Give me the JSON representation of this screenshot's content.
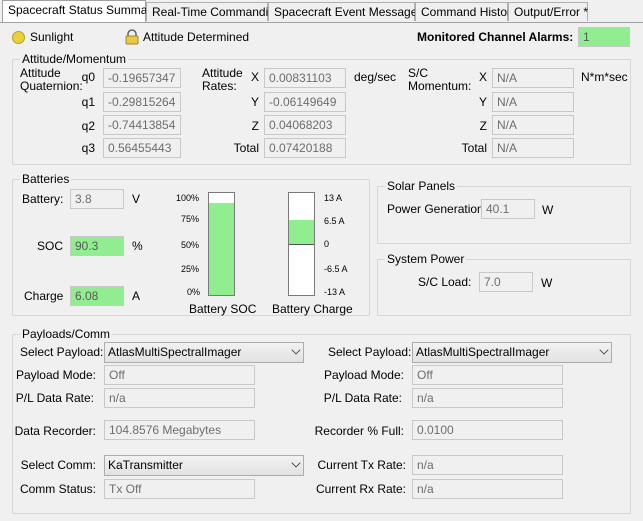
{
  "tabs": [
    "Spacecraft Status Summary",
    "Real-Time Commanding",
    "Spacecraft Event Messages",
    "Command History",
    "Output/Error *"
  ],
  "status": {
    "sunlight": "Sunlight",
    "attitude": "Attitude Determined",
    "alarms_label": "Monitored Channel Alarms:",
    "alarms_value": "1"
  },
  "attitude": {
    "title": "Attitude/Momentum",
    "quat_label": "Attitude\nQuaternion:",
    "quat": [
      {
        "k": "q0",
        "v": "-0.19657347"
      },
      {
        "k": "q1",
        "v": "-0.29815264"
      },
      {
        "k": "q2",
        "v": "-0.74413854"
      },
      {
        "k": "q3",
        "v": "0.56455443"
      }
    ],
    "rates_label": "Attitude\nRates:",
    "rates": [
      {
        "k": "X",
        "v": "0.00831103"
      },
      {
        "k": "Y",
        "v": "-0.06149649"
      },
      {
        "k": "Z",
        "v": "0.04068203"
      },
      {
        "k": "Total",
        "v": "0.07420188"
      }
    ],
    "rates_unit": "deg/sec",
    "mom_label": "S/C\nMomentum:",
    "mom": [
      {
        "k": "X",
        "v": "N/A"
      },
      {
        "k": "Y",
        "v": "N/A"
      },
      {
        "k": "Z",
        "v": "N/A"
      },
      {
        "k": "Total",
        "v": "N/A"
      }
    ],
    "mom_unit": "N*m*sec"
  },
  "batteries": {
    "title": "Batteries",
    "battery_label": "Battery:",
    "battery_value": "3.8",
    "battery_unit": "V",
    "soc_label": "SOC",
    "soc_value": "90.3",
    "soc_unit": "%",
    "charge_label": "Charge",
    "charge_value": "6.08",
    "charge_unit": "A",
    "soc_ticks": [
      "100%",
      "75%",
      "50%",
      "25%",
      "0%"
    ],
    "charge_ticks": [
      "13 A",
      "6.5 A",
      "0",
      "-6.5 A",
      "-13 A"
    ],
    "soc_bar_label": "Battery SOC",
    "charge_bar_label": "Battery Charge",
    "soc_fraction": 0.903,
    "charge_value_num": 6.08,
    "charge_max": 13
  },
  "solar": {
    "title": "Solar Panels",
    "label": "Power Generation",
    "value": "40.1",
    "unit": "W"
  },
  "power": {
    "title": "System Power",
    "label": "S/C Load:",
    "value": "7.0",
    "unit": "W"
  },
  "payloads": {
    "title": "Payloads/Comm",
    "left": {
      "select_payload_label": "Select Payload:",
      "select_payload_value": "AtlasMultiSpectralImager",
      "mode_label": "Payload Mode:",
      "mode_value": "Off",
      "rate_label": "P/L Data Rate:",
      "rate_value": "n/a",
      "recorder_label": "Data Recorder:",
      "recorder_value": "104.8576 Megabytes",
      "comm_label": "Select Comm:",
      "comm_value": "KaTransmitter",
      "comm_status_label": "Comm Status:",
      "comm_status_value": "Tx Off"
    },
    "right": {
      "select_payload_label": "Select Payload:",
      "select_payload_value": "AtlasMultiSpectralImager",
      "mode_label": "Payload Mode:",
      "mode_value": "Off",
      "rate_label": "P/L Data Rate:",
      "rate_value": "n/a",
      "recorder_pct_label": "Recorder % Full:",
      "recorder_pct_value": "0.0100",
      "tx_label": "Current Tx Rate:",
      "tx_value": "n/a",
      "rx_label": "Current Rx Rate:",
      "rx_value": "n/a"
    }
  },
  "colors": {
    "green": "#90ee90",
    "sun": "#e8d23c"
  }
}
